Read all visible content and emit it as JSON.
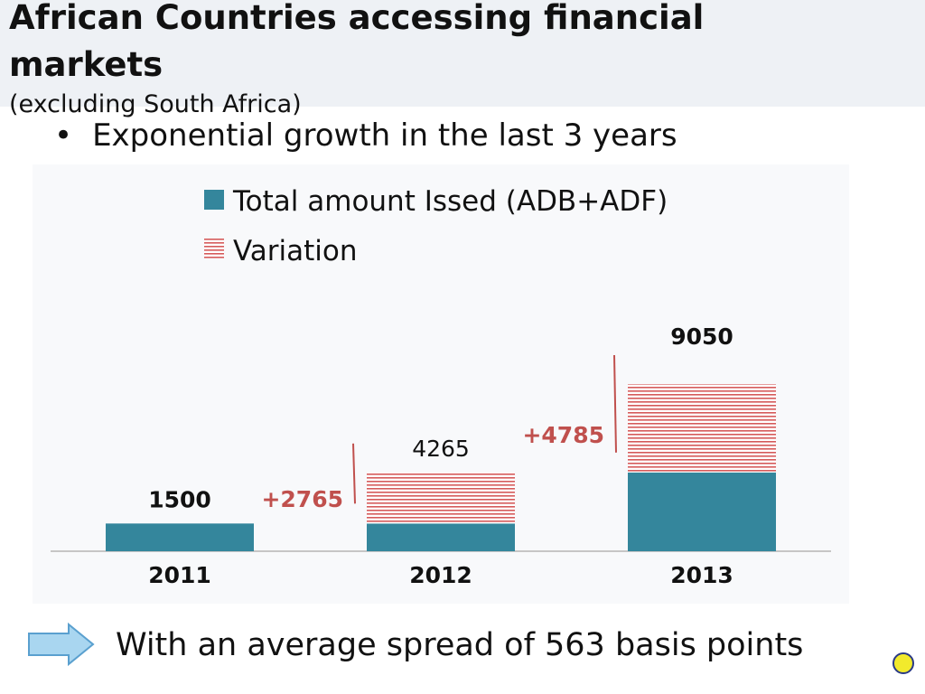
{
  "slide": {
    "title": "African Countries accessing financial markets",
    "subtitle": "(excluding South Africa)",
    "bullet": "Exponential growth in the last 3 years",
    "footer": "With an average spread of 563 basis points",
    "colors": {
      "title_band": "#eef1f5",
      "chart_panel": "#f8f9fb",
      "arrow_fill": "#a9d6f0",
      "arrow_stroke": "#5aa0cf",
      "nav_dot": "#f2ea2c"
    },
    "icons": [
      "right-arrow-icon",
      "circle-nav-icon"
    ]
  },
  "chart_data": {
    "type": "bar",
    "stacked": true,
    "categories": [
      "2011",
      "2012",
      "2013"
    ],
    "series": [
      {
        "name": "Total amount Issed (ADB+ADF)",
        "values": [
          1500,
          1500,
          4265
        ],
        "color": "#34869c",
        "pattern": "solid"
      },
      {
        "name": "Variation",
        "values": [
          0,
          2765,
          4785
        ],
        "color": "#d55a5a",
        "pattern": "horizontal-stripes"
      }
    ],
    "totals": [
      "1500",
      "4265",
      "9050"
    ],
    "variation_labels": [
      "",
      "+2765",
      "+4785"
    ],
    "variation_label_color": "#c0504d",
    "legend_position": "top",
    "grid": false,
    "ylim": [
      0,
      9050
    ]
  }
}
